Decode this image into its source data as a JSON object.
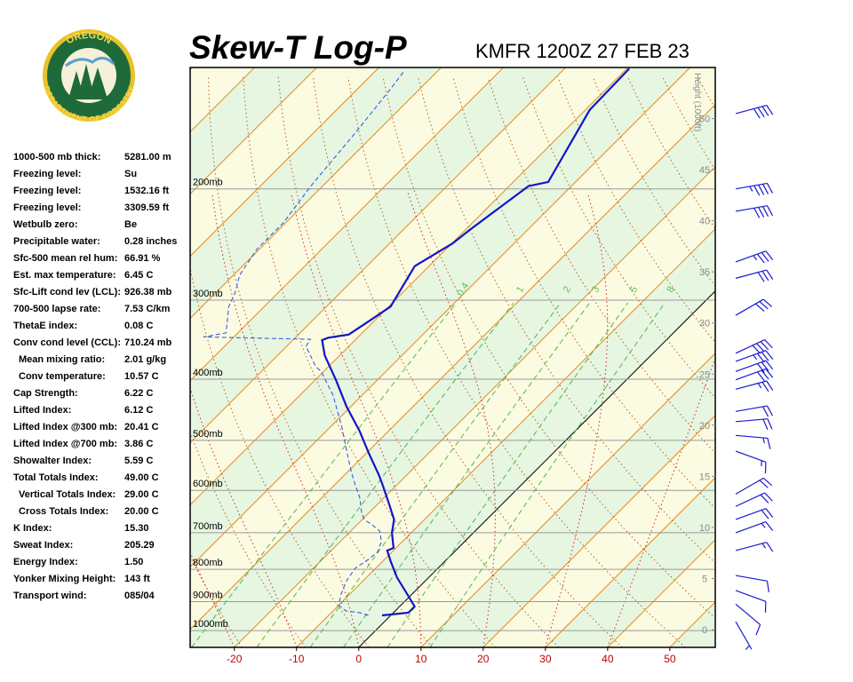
{
  "header": {
    "title": "Skew-T Log-P",
    "station": "KMFR 1200Z 27 FEB 23"
  },
  "logo": {
    "top": "OREGON",
    "bottom": "DEPARTMENT OF FORESTRY"
  },
  "indices": [
    {
      "label": "1000-500 mb thick:",
      "value": "5281.00 m"
    },
    {
      "label": "Freezing level:",
      "value": "Su"
    },
    {
      "label": "Freezing level:",
      "value": "1532.16 ft"
    },
    {
      "label": "Freezing level:",
      "value": "3309.59 ft"
    },
    {
      "label": "Wetbulb zero:",
      "value": "Be"
    },
    {
      "label": "Precipitable water:",
      "value": "0.28 inches"
    },
    {
      "label": "Sfc-500 mean rel hum:",
      "value": "66.91 %"
    },
    {
      "label": "Est. max temperature:",
      "value": "6.45 C"
    },
    {
      "label": "Sfc-Lift cond lev (LCL):",
      "value": "926.38 mb"
    },
    {
      "label": "700-500 lapse rate:",
      "value": "7.53 C/km"
    },
    {
      "label": "ThetaE index:",
      "value": "0.08 C"
    },
    {
      "label": "Conv cond level (CCL):",
      "value": "710.24 mb"
    },
    {
      "label": "Mean mixing ratio:",
      "value": "2.01 g/kg"
    },
    {
      "label": "Conv temperature:",
      "value": "10.57 C"
    },
    {
      "label": "Cap Strength:",
      "value": "6.22 C"
    },
    {
      "label": "Lifted Index:",
      "value": "6.12 C"
    },
    {
      "label": "Lifted Index @300 mb:",
      "value": "20.41 C"
    },
    {
      "label": "Lifted Index @700 mb:",
      "value": "3.86 C"
    },
    {
      "label": "Showalter Index:",
      "value": "5.59 C"
    },
    {
      "label": "Total Totals Index:",
      "value": "49.00 C"
    },
    {
      "label": "Vertical Totals Index:",
      "value": "29.00 C"
    },
    {
      "label": "Cross Totals Index:",
      "value": "20.00 C"
    },
    {
      "label": "K Index:",
      "value": "15.30"
    },
    {
      "label": "Sweat Index:",
      "value": "205.29"
    },
    {
      "label": "Energy Index:",
      "value": "1.50"
    },
    {
      "label": "Yonker Mixing Height:",
      "value": "143 ft"
    },
    {
      "label": "Transport wind:",
      "value": "085/04"
    }
  ],
  "chart_data": {
    "type": "skewt",
    "xlim": [
      -27.1,
      57.3
    ],
    "xticks": [
      -20,
      -10,
      0,
      10,
      20,
      30,
      40,
      50
    ],
    "ylim": [
      1063,
      128.5
    ],
    "log_y": true,
    "yticks": [
      {
        "value": 200,
        "label": "200mb"
      },
      {
        "value": 300,
        "label": "300mb"
      },
      {
        "value": 400,
        "label": "400mb"
      },
      {
        "value": 500,
        "label": "500mb"
      },
      {
        "value": 600,
        "label": "600mb"
      },
      {
        "value": 700,
        "label": "700mb"
      },
      {
        "value": 800,
        "label": "800mb"
      },
      {
        "value": 900,
        "label": "900mb"
      },
      {
        "value": 1000,
        "label": "1000mb"
      }
    ],
    "y2label": "Height (1000ft)",
    "y2lim": [
      -1.74,
      55
    ],
    "y2ticks": [
      0,
      5,
      10,
      15,
      20,
      25,
      30,
      35,
      40,
      45,
      50
    ],
    "mixing_ratios": [
      0.4,
      1,
      2,
      3,
      5,
      8
    ],
    "series": [
      {
        "color": "#1414c8",
        "dashed": false,
        "p": [
          946,
          937,
          916,
          884,
          824,
          777,
          747,
          740,
          700,
          667,
          626,
          588,
          568,
          524,
          483,
          442,
          401,
          367,
          347,
          344,
          340,
          322,
          307,
          265,
          244,
          232,
          198,
          195,
          150,
          129
        ],
        "t": [
          -1.4,
          2.4,
          2.4,
          -0.1,
          -5.1,
          -8.7,
          -11.0,
          -10.4,
          -13.1,
          -14.9,
          -18.6,
          -22.3,
          -24.4,
          -29.6,
          -34.7,
          -40.7,
          -46.7,
          -52.4,
          -55.3,
          -54.7,
          -51.9,
          -50.7,
          -49.7,
          -52.3,
          -49.9,
          -49.3,
          -46.9,
          -44.4,
          -49.3,
          -49.6
        ]
      },
      {
        "color": "#2a4be6",
        "dashed": true,
        "p": [
          946,
          937,
          931,
          913,
          879,
          837,
          797,
          772,
          752,
          724,
          696,
          682,
          667,
          652,
          615,
          586,
          558,
          515,
          475,
          448,
          424,
          404,
          389,
          382,
          367,
          355,
          346,
          343,
          338,
          307,
          292,
          274,
          249,
          226,
          198,
          163,
          139,
          130
        ],
        "t": [
          -3.6,
          -5.4,
          -7.9,
          -9.9,
          -11.3,
          -12.6,
          -13.3,
          -12.6,
          -12.3,
          -13.3,
          -15.3,
          -17.3,
          -19.7,
          -21.1,
          -24.0,
          -26.9,
          -29.7,
          -34.0,
          -38.3,
          -41.6,
          -44.7,
          -47.9,
          -50.4,
          -52.1,
          -54.7,
          -56.9,
          -57.3,
          -74.9,
          -71.9,
          -75.7,
          -76.9,
          -79.0,
          -80.4,
          -80.4,
          -81.9,
          -83.3,
          -84.7,
          -85.4
        ]
      }
    ],
    "winds": {
      "color": "#1a1ad0",
      "p": [
        152,
        200,
        217,
        261,
        277,
        317,
        364,
        375,
        389,
        401,
        415,
        450,
        467,
        491,
        520,
        608,
        636,
        667,
        700,
        747,
        818,
        864,
        908,
        968
      ],
      "direction": [
        75,
        80,
        80,
        70,
        75,
        60,
        65,
        70,
        70,
        70,
        75,
        80,
        85,
        95,
        110,
        60,
        65,
        70,
        70,
        75,
        100,
        110,
        130,
        150
      ],
      "speed": [
        40,
        45,
        40,
        35,
        30,
        30,
        40,
        35,
        30,
        30,
        25,
        20,
        20,
        15,
        15,
        20,
        20,
        20,
        15,
        15,
        10,
        10,
        10,
        5
      ]
    }
  }
}
